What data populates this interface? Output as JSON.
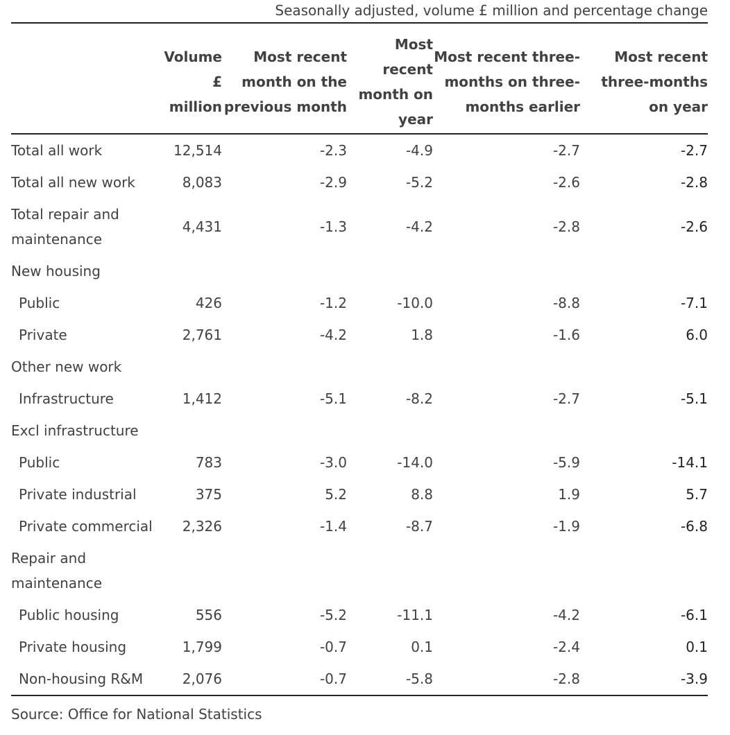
{
  "caption": "Seasonally adjusted, volume £ million and percentage change",
  "headers": [
    "",
    "Volume £ million",
    "Most recent month on the previous month",
    "Most recent month on year",
    "Most recent three-months on three-months earlier",
    "Most recent three-months on year"
  ],
  "rows": [
    {
      "label": "Total all work",
      "indent": false,
      "cells": [
        "12,514",
        "-2.3",
        "-4.9",
        "-2.7",
        "-2.7"
      ]
    },
    {
      "label": "Total all new work",
      "indent": false,
      "cells": [
        "8,083",
        "-2.9",
        "-5.2",
        "-2.6",
        "-2.8"
      ]
    },
    {
      "label": "Total repair and maintenance",
      "indent": false,
      "cells": [
        "4,431",
        "-1.3",
        "-4.2",
        "-2.8",
        "-2.6"
      ]
    },
    {
      "label": "New housing",
      "indent": false,
      "cells": [
        "",
        "",
        "",
        "",
        ""
      ]
    },
    {
      "label": "Public",
      "indent": true,
      "cells": [
        "426",
        "-1.2",
        "-10.0",
        "-8.8",
        "-7.1"
      ]
    },
    {
      "label": "Private",
      "indent": true,
      "cells": [
        "2,761",
        "-4.2",
        "1.8",
        "-1.6",
        "6.0"
      ]
    },
    {
      "label": "Other new work",
      "indent": false,
      "cells": [
        "",
        "",
        "",
        "",
        ""
      ]
    },
    {
      "label": "Infrastructure",
      "indent": true,
      "cells": [
        "1,412",
        "-5.1",
        "-8.2",
        "-2.7",
        "-5.1"
      ]
    },
    {
      "label": "Excl infrastructure",
      "indent": false,
      "cells": [
        "",
        "",
        "",
        "",
        ""
      ]
    },
    {
      "label": "Public",
      "indent": true,
      "cells": [
        "783",
        "-3.0",
        "-14.0",
        "-5.9",
        "-14.1"
      ]
    },
    {
      "label": "Private industrial",
      "indent": true,
      "cells": [
        "375",
        "5.2",
        "8.8",
        "1.9",
        "5.7"
      ]
    },
    {
      "label": "Private commercial",
      "indent": true,
      "cells": [
        "2,326",
        "-1.4",
        "-8.7",
        "-1.9",
        "-6.8"
      ]
    },
    {
      "label": "Repair and maintenance",
      "indent": false,
      "cells": [
        "",
        "",
        "",
        "",
        ""
      ]
    },
    {
      "label": "Public housing",
      "indent": true,
      "cells": [
        "556",
        "-5.2",
        "-11.1",
        "-4.2",
        "-6.1"
      ]
    },
    {
      "label": "Private housing",
      "indent": true,
      "cells": [
        "1,799",
        "-0.7",
        "0.1",
        "-2.4",
        "0.1"
      ]
    },
    {
      "label": "Non-housing R&M",
      "indent": true,
      "cells": [
        "2,076",
        "-0.7",
        "-5.8",
        "-2.8",
        "-3.9"
      ]
    }
  ],
  "source": "Source: Office for National Statistics"
}
